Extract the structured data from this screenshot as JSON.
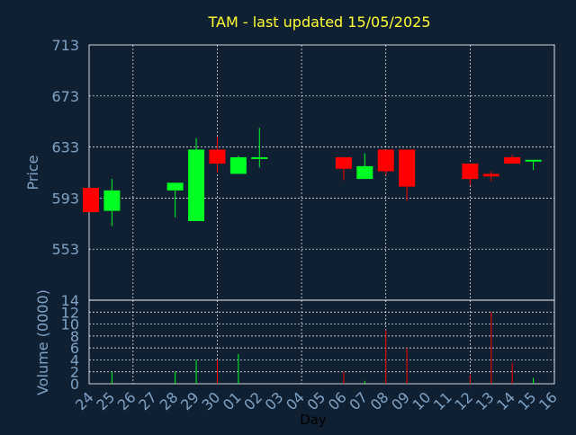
{
  "colors": {
    "background": "#102033",
    "title": "#ffff33",
    "axis_text": "#7fa3c6",
    "xlabel": "#000000",
    "up": "#00ff22",
    "down": "#ff0000",
    "grid": "#ffffff",
    "frame": "#ffffff"
  },
  "chart_data": [
    {
      "type": "candlestick",
      "title": "TAM - last updated 15/05/2025",
      "ylabel": "Price",
      "ylim": [
        513,
        713
      ],
      "yticks": [
        "713",
        "673",
        "633",
        "593",
        "553"
      ],
      "ytick_values": [
        713,
        673,
        633,
        593,
        553
      ],
      "grid": true,
      "categories": [
        "24",
        "25",
        "26",
        "27",
        "28",
        "29",
        "30",
        "01",
        "02",
        "03",
        "04",
        "05",
        "06",
        "07",
        "08",
        "09",
        "10",
        "11",
        "12",
        "13",
        "14",
        "15",
        "16"
      ],
      "candles": [
        {
          "day": "24",
          "open": 601,
          "close": 582,
          "high": 601,
          "low": 582
        },
        {
          "day": "25",
          "open": 583,
          "close": 599,
          "high": 608,
          "low": 571
        },
        {
          "day": "28",
          "open": 599,
          "close": 605,
          "high": 605,
          "low": 578
        },
        {
          "day": "29",
          "open": 575,
          "close": 631,
          "high": 640,
          "low": 575
        },
        {
          "day": "30",
          "open": 631,
          "close": 620,
          "high": 641,
          "low": 613
        },
        {
          "day": "01",
          "open": 612,
          "close": 625,
          "high": 626,
          "low": 612
        },
        {
          "day": "02",
          "open": 624,
          "close": 625,
          "high": 648,
          "low": 617
        },
        {
          "day": "06",
          "open": 625,
          "close": 616,
          "high": 625,
          "low": 607
        },
        {
          "day": "07",
          "open": 608,
          "close": 618,
          "high": 628,
          "low": 608
        },
        {
          "day": "08",
          "open": 631,
          "close": 614,
          "high": 631,
          "low": 611
        },
        {
          "day": "09",
          "open": 631,
          "close": 602,
          "high": 631,
          "low": 591
        },
        {
          "day": "12",
          "open": 620,
          "close": 608,
          "high": 620,
          "low": 603
        },
        {
          "day": "13",
          "open": 612,
          "close": 610,
          "high": 614,
          "low": 606
        },
        {
          "day": "14",
          "open": 625,
          "close": 620,
          "high": 627,
          "low": 620
        },
        {
          "day": "15",
          "open": 622,
          "close": 623,
          "high": 623,
          "low": 615
        }
      ]
    },
    {
      "type": "bar",
      "xlabel": "Day",
      "ylabel": "Volume (0000)",
      "ylim": [
        0,
        14
      ],
      "yticks": [
        "14",
        "12",
        "10",
        "8",
        "6",
        "4",
        "2",
        "0"
      ],
      "ytick_values": [
        14,
        12,
        10,
        8,
        6,
        4,
        2,
        0
      ],
      "grid": true,
      "categories": [
        "24",
        "25",
        "26",
        "27",
        "28",
        "29",
        "30",
        "01",
        "02",
        "03",
        "04",
        "05",
        "06",
        "07",
        "08",
        "09",
        "10",
        "11",
        "12",
        "13",
        "14",
        "15",
        "16"
      ],
      "bars": [
        {
          "day": "25",
          "value": 2,
          "direction": "up"
        },
        {
          "day": "28",
          "value": 2,
          "direction": "up"
        },
        {
          "day": "29",
          "value": 4,
          "direction": "up"
        },
        {
          "day": "30",
          "value": 4,
          "direction": "down"
        },
        {
          "day": "01",
          "value": 5,
          "direction": "up"
        },
        {
          "day": "06",
          "value": 2,
          "direction": "down"
        },
        {
          "day": "07",
          "value": 0.5,
          "direction": "up"
        },
        {
          "day": "08",
          "value": 9,
          "direction": "down"
        },
        {
          "day": "09",
          "value": 6,
          "direction": "down"
        },
        {
          "day": "12",
          "value": 1.5,
          "direction": "down"
        },
        {
          "day": "13",
          "value": 12,
          "direction": "down"
        },
        {
          "day": "14",
          "value": 3.5,
          "direction": "down"
        },
        {
          "day": "15",
          "value": 1,
          "direction": "up"
        }
      ]
    }
  ]
}
